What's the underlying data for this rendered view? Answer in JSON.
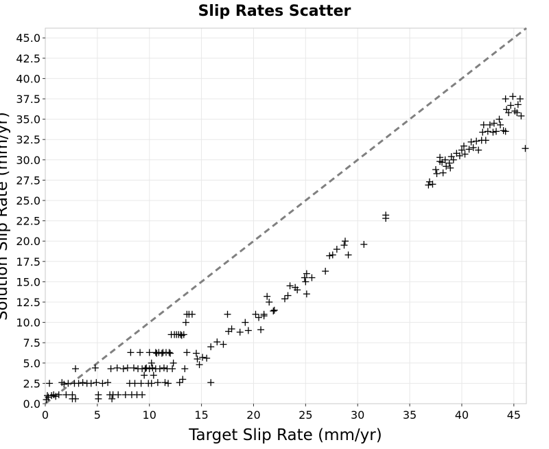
{
  "chart_data": {
    "type": "scatter",
    "title": "Slip Rates Scatter",
    "xlabel": "Target Slip Rate (mm/yr)",
    "ylabel": "Solution Slip Rate (mm/yr)",
    "xlim": [
      0,
      46.2
    ],
    "ylim": [
      0,
      46.2
    ],
    "x_ticks": [
      0,
      5,
      10,
      15,
      20,
      25,
      30,
      35,
      40,
      45
    ],
    "y_ticks": [
      0.0,
      2.5,
      5.0,
      7.5,
      10.0,
      12.5,
      15.0,
      17.5,
      20.0,
      22.5,
      25.0,
      27.5,
      30.0,
      32.5,
      35.0,
      37.5,
      40.0,
      42.5,
      45.0
    ],
    "y_tick_labels": [
      "0.0",
      "2.5",
      "5.0",
      "7.5",
      "10.0",
      "12.5",
      "15.0",
      "17.5",
      "20.0",
      "22.5",
      "25.0",
      "27.5",
      "30.0",
      "32.5",
      "35.0",
      "37.5",
      "40.0",
      "42.5",
      "45.0"
    ],
    "grid": true,
    "reference_line": {
      "label": "",
      "style": "dashed",
      "color": "#808080",
      "from": [
        0,
        0
      ],
      "to": [
        46.2,
        46.2
      ]
    },
    "marker": "plus",
    "marker_color": "#000000",
    "points": [
      [
        0.1,
        0.5
      ],
      [
        0.2,
        1.0
      ],
      [
        0.3,
        0.8
      ],
      [
        0.4,
        2.5
      ],
      [
        0.6,
        1.0
      ],
      [
        0.8,
        1.1
      ],
      [
        1.0,
        0.9
      ],
      [
        1.3,
        1.1
      ],
      [
        1.6,
        2.6
      ],
      [
        1.8,
        2.4
      ],
      [
        2.0,
        1.1
      ],
      [
        2.2,
        2.5
      ],
      [
        2.6,
        0.6
      ],
      [
        2.6,
        1.1
      ],
      [
        2.8,
        2.5
      ],
      [
        2.9,
        0.6
      ],
      [
        2.9,
        4.3
      ],
      [
        3.2,
        2.5
      ],
      [
        3.6,
        2.6
      ],
      [
        4.0,
        2.5
      ],
      [
        4.4,
        2.5
      ],
      [
        4.8,
        4.4
      ],
      [
        4.9,
        2.6
      ],
      [
        5.1,
        1.1
      ],
      [
        5.1,
        0.6
      ],
      [
        5.5,
        2.5
      ],
      [
        6.0,
        2.6
      ],
      [
        6.2,
        1.1
      ],
      [
        6.3,
        4.3
      ],
      [
        6.4,
        0.6
      ],
      [
        6.5,
        1.1
      ],
      [
        6.9,
        4.4
      ],
      [
        7.0,
        1.1
      ],
      [
        7.5,
        4.3
      ],
      [
        7.7,
        1.1
      ],
      [
        7.9,
        4.4
      ],
      [
        8.1,
        2.5
      ],
      [
        8.2,
        6.3
      ],
      [
        8.3,
        1.1
      ],
      [
        8.5,
        4.4
      ],
      [
        8.6,
        2.5
      ],
      [
        8.8,
        1.1
      ],
      [
        8.9,
        4.3
      ],
      [
        9.1,
        6.3
      ],
      [
        9.3,
        1.1
      ],
      [
        9.2,
        2.5
      ],
      [
        9.3,
        4.3
      ],
      [
        9.5,
        3.5
      ],
      [
        9.6,
        4.3
      ],
      [
        9.7,
        4.4
      ],
      [
        9.9,
        2.5
      ],
      [
        10.0,
        6.3
      ],
      [
        10.0,
        4.3
      ],
      [
        10.2,
        2.5
      ],
      [
        10.2,
        5.0
      ],
      [
        10.3,
        4.4
      ],
      [
        10.4,
        3.5
      ],
      [
        10.6,
        4.3
      ],
      [
        10.6,
        6.3
      ],
      [
        10.7,
        6.2
      ],
      [
        10.8,
        2.6
      ],
      [
        10.9,
        6.3
      ],
      [
        11.0,
        4.3
      ],
      [
        11.2,
        6.2
      ],
      [
        11.3,
        6.3
      ],
      [
        11.4,
        4.4
      ],
      [
        11.5,
        2.6
      ],
      [
        11.6,
        6.3
      ],
      [
        11.7,
        4.3
      ],
      [
        11.8,
        2.5
      ],
      [
        11.9,
        6.3
      ],
      [
        12.0,
        6.2
      ],
      [
        12.1,
        8.5
      ],
      [
        12.2,
        4.3
      ],
      [
        12.3,
        5.0
      ],
      [
        12.4,
        8.5
      ],
      [
        12.6,
        8.5
      ],
      [
        12.8,
        8.5
      ],
      [
        12.9,
        2.6
      ],
      [
        13.0,
        8.5
      ],
      [
        13.1,
        8.4
      ],
      [
        13.2,
        3.0
      ],
      [
        13.3,
        8.5
      ],
      [
        13.4,
        4.3
      ],
      [
        13.5,
        10.0
      ],
      [
        13.6,
        11.0
      ],
      [
        13.6,
        6.3
      ],
      [
        13.8,
        11.0
      ],
      [
        14.1,
        11.0
      ],
      [
        14.5,
        6.2
      ],
      [
        14.6,
        5.5
      ],
      [
        14.8,
        4.8
      ],
      [
        15.1,
        5.7
      ],
      [
        15.5,
        5.6
      ],
      [
        15.9,
        2.6
      ],
      [
        15.9,
        7.0
      ],
      [
        16.5,
        7.6
      ],
      [
        17.1,
        7.3
      ],
      [
        17.6,
        8.9
      ],
      [
        17.9,
        9.2
      ],
      [
        17.5,
        11.0
      ],
      [
        18.7,
        8.8
      ],
      [
        19.2,
        10.0
      ],
      [
        19.5,
        9.0
      ],
      [
        20.2,
        11.0
      ],
      [
        20.5,
        10.6
      ],
      [
        20.7,
        9.1
      ],
      [
        21.0,
        11.0
      ],
      [
        21.3,
        13.2
      ],
      [
        21.5,
        12.5
      ],
      [
        21.9,
        11.4
      ],
      [
        21.0,
        10.8
      ],
      [
        22.0,
        11.5
      ],
      [
        23.0,
        12.9
      ],
      [
        23.3,
        13.3
      ],
      [
        23.5,
        14.5
      ],
      [
        24.0,
        14.3
      ],
      [
        24.2,
        14.0
      ],
      [
        24.9,
        15.5
      ],
      [
        25.1,
        16.0
      ],
      [
        25.0,
        15.0
      ],
      [
        25.1,
        13.5
      ],
      [
        25.6,
        15.5
      ],
      [
        26.9,
        16.3
      ],
      [
        27.3,
        18.2
      ],
      [
        27.6,
        18.3
      ],
      [
        28.0,
        19.0
      ],
      [
        28.7,
        19.5
      ],
      [
        28.8,
        20.0
      ],
      [
        29.1,
        18.3
      ],
      [
        30.6,
        19.6
      ],
      [
        32.7,
        22.8
      ],
      [
        32.7,
        23.2
      ],
      [
        36.8,
        26.9
      ],
      [
        36.9,
        27.3
      ],
      [
        37.2,
        27.0
      ],
      [
        37.5,
        28.8
      ],
      [
        37.6,
        28.3
      ],
      [
        37.9,
        29.8
      ],
      [
        37.9,
        30.3
      ],
      [
        38.1,
        29.7
      ],
      [
        38.2,
        28.4
      ],
      [
        38.4,
        30.0
      ],
      [
        38.5,
        29.2
      ],
      [
        38.8,
        29.6
      ],
      [
        38.9,
        29.0
      ],
      [
        39.0,
        30.4
      ],
      [
        39.2,
        30.0
      ],
      [
        39.5,
        30.8
      ],
      [
        39.8,
        30.5
      ],
      [
        40.0,
        31.2
      ],
      [
        40.2,
        31.7
      ],
      [
        40.3,
        30.7
      ],
      [
        40.7,
        31.3
      ],
      [
        40.9,
        32.2
      ],
      [
        41.1,
        31.5
      ],
      [
        41.4,
        32.3
      ],
      [
        41.6,
        31.2
      ],
      [
        41.9,
        32.4
      ],
      [
        42.0,
        33.4
      ],
      [
        42.1,
        34.3
      ],
      [
        42.3,
        32.4
      ],
      [
        42.5,
        33.5
      ],
      [
        42.7,
        34.3
      ],
      [
        43.0,
        33.4
      ],
      [
        43.1,
        34.5
      ],
      [
        43.3,
        33.5
      ],
      [
        43.6,
        35.0
      ],
      [
        43.7,
        34.3
      ],
      [
        44.0,
        33.6
      ],
      [
        44.2,
        33.5
      ],
      [
        44.3,
        36.2
      ],
      [
        44.2,
        37.5
      ],
      [
        44.5,
        35.8
      ],
      [
        44.7,
        36.7
      ],
      [
        44.9,
        37.8
      ],
      [
        45.1,
        36.0
      ],
      [
        45.3,
        35.8
      ],
      [
        45.4,
        36.8
      ],
      [
        45.6,
        37.5
      ],
      [
        45.7,
        35.4
      ],
      [
        46.1,
        31.4
      ]
    ]
  }
}
